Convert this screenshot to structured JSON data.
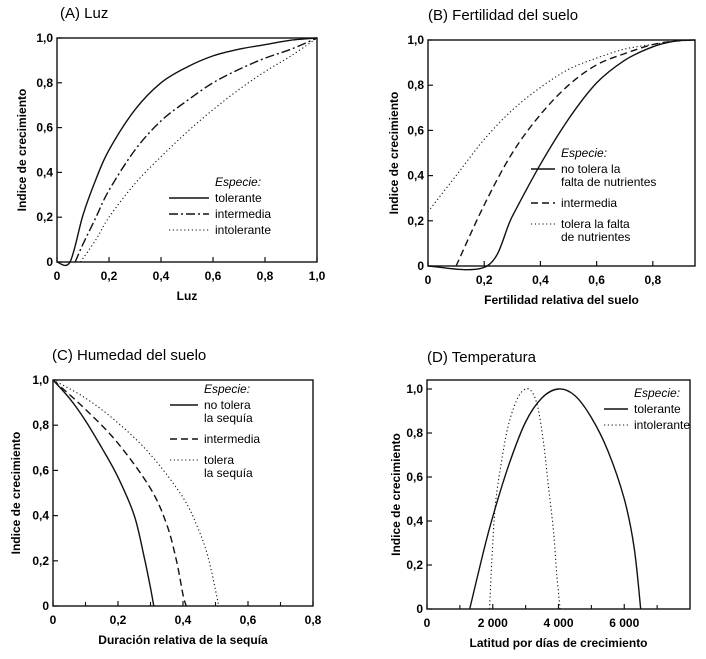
{
  "colors": {
    "ink": "#111111",
    "background": "#ffffff"
  },
  "chart_data": [
    {
      "id": "A",
      "type": "line",
      "panel_letter": "(A)",
      "title": "Luz",
      "xlabel": "Luz",
      "ylabel": "Indice de crecimiento",
      "xlim": [
        0,
        1.0
      ],
      "ylim": [
        0,
        1.0
      ],
      "xticks": [
        0,
        0.2,
        0.4,
        0.6,
        0.8,
        1.0
      ],
      "xtick_labels": [
        "0",
        "0,2",
        "0,4",
        "0,6",
        "0,8",
        "1,0"
      ],
      "yticks": [
        0,
        0.2,
        0.4,
        0.6,
        0.8,
        1.0
      ],
      "ytick_labels": [
        "0",
        "0,2",
        "0,4",
        "0,6",
        "0,8",
        "1,0"
      ],
      "grid": false,
      "legend_position": "bottom-right",
      "legend_title": "Especie:",
      "series": [
        {
          "name": "tolerante",
          "label_lines": [
            "tolerante"
          ],
          "style": "solid",
          "x": [
            0,
            0.05,
            0.1,
            0.15,
            0.2,
            0.3,
            0.4,
            0.5,
            0.6,
            0.7,
            0.8,
            0.9,
            1.0
          ],
          "y": [
            0,
            0,
            0.21,
            0.37,
            0.5,
            0.68,
            0.8,
            0.87,
            0.92,
            0.95,
            0.97,
            0.99,
            1.0
          ]
        },
        {
          "name": "intermedia",
          "label_lines": [
            "intermedia"
          ],
          "style": "dashdot",
          "x": [
            0.07,
            0.1,
            0.15,
            0.2,
            0.3,
            0.4,
            0.5,
            0.6,
            0.7,
            0.8,
            0.9,
            1.0
          ],
          "y": [
            0,
            0.08,
            0.2,
            0.32,
            0.5,
            0.63,
            0.72,
            0.8,
            0.86,
            0.91,
            0.95,
            1.0
          ]
        },
        {
          "name": "intolerante",
          "label_lines": [
            "intolerante"
          ],
          "style": "dotted",
          "x": [
            0.09,
            0.15,
            0.2,
            0.3,
            0.4,
            0.5,
            0.6,
            0.7,
            0.8,
            0.9,
            1.0
          ],
          "y": [
            0,
            0.1,
            0.2,
            0.35,
            0.47,
            0.58,
            0.68,
            0.77,
            0.85,
            0.92,
            1.0
          ]
        }
      ]
    },
    {
      "id": "B",
      "type": "line",
      "panel_letter": "(B)",
      "title": "Fertilidad del suelo",
      "xlabel": "Fertilidad relativa del suelo",
      "ylabel": "Indice de crecimiento",
      "xlim": [
        0,
        0.95
      ],
      "ylim": [
        0,
        1.0
      ],
      "xticks": [
        0,
        0.2,
        0.4,
        0.6,
        0.8
      ],
      "xtick_labels": [
        "0",
        "0,2",
        "0,4",
        "0,6",
        "0,8"
      ],
      "yticks": [
        0,
        0.2,
        0.4,
        0.6,
        0.8,
        1.0
      ],
      "ytick_labels": [
        "0",
        "0,2",
        "0,4",
        "0,6",
        "0,8",
        "1,0"
      ],
      "grid": false,
      "legend_position": "bottom-right",
      "legend_title": "Especie:",
      "series": [
        {
          "name": "no tolera la falta de nutrientes",
          "label_lines": [
            "no tolera la",
            "falta de nutrientes"
          ],
          "style": "solid",
          "x": [
            0,
            0.21,
            0.3,
            0.4,
            0.5,
            0.6,
            0.7,
            0.8,
            0.88,
            0.95
          ],
          "y": [
            0,
            0,
            0.22,
            0.45,
            0.65,
            0.81,
            0.91,
            0.97,
            0.995,
            1.0
          ]
        },
        {
          "name": "intermedia",
          "label_lines": [
            "intermedia"
          ],
          "style": "dashed",
          "x": [
            0.1,
            0.2,
            0.3,
            0.4,
            0.5,
            0.6,
            0.7,
            0.8,
            0.88,
            0.95
          ],
          "y": [
            0,
            0.27,
            0.5,
            0.67,
            0.8,
            0.89,
            0.94,
            0.98,
            0.995,
            1.0
          ]
        },
        {
          "name": "tolera la falta de nutrientes",
          "label_lines": [
            "tolera la falta",
            "de nutrientes"
          ],
          "style": "dotted",
          "x": [
            0,
            0.1,
            0.2,
            0.3,
            0.4,
            0.5,
            0.6,
            0.7,
            0.8,
            0.88,
            0.95
          ],
          "y": [
            0.24,
            0.4,
            0.56,
            0.69,
            0.79,
            0.87,
            0.92,
            0.96,
            0.98,
            0.995,
            1.0
          ]
        }
      ]
    },
    {
      "id": "C",
      "type": "line",
      "panel_letter": "(C)",
      "title": "Humedad del suelo",
      "xlabel": "Duración relativa de la sequía",
      "ylabel": "Indice de crecimiento",
      "xlim": [
        0,
        0.8
      ],
      "ylim": [
        0,
        1.0
      ],
      "xticks": [
        0,
        0.2,
        0.4,
        0.6,
        0.8
      ],
      "xtick_labels": [
        "0",
        "0,2",
        "0,4",
        "0,6",
        "0,8"
      ],
      "minor_xticks": [
        0.1,
        0.3,
        0.5,
        0.7
      ],
      "yticks": [
        0,
        0.2,
        0.4,
        0.6,
        0.8,
        1.0
      ],
      "ytick_labels": [
        "0",
        "0,2",
        "0,4",
        "0,6",
        "0,8",
        "1,0"
      ],
      "grid": false,
      "legend_position": "top-right",
      "legend_title": "Especie:",
      "series": [
        {
          "name": "no tolera la sequía",
          "label_lines": [
            "no tolera",
            "la sequía"
          ],
          "style": "solid",
          "x": [
            0,
            0.05,
            0.1,
            0.15,
            0.2,
            0.25,
            0.28,
            0.3,
            0.31
          ],
          "y": [
            1.0,
            0.92,
            0.82,
            0.7,
            0.57,
            0.4,
            0.22,
            0.08,
            0
          ]
        },
        {
          "name": "intermedia",
          "label_lines": [
            "intermedia"
          ],
          "style": "dashed",
          "x": [
            0,
            0.1,
            0.2,
            0.3,
            0.35,
            0.38,
            0.4,
            0.41
          ],
          "y": [
            1.0,
            0.87,
            0.72,
            0.52,
            0.36,
            0.2,
            0.05,
            0
          ]
        },
        {
          "name": "tolera la sequía",
          "label_lines": [
            "tolera",
            "la sequía"
          ],
          "style": "dotted",
          "x": [
            0,
            0.1,
            0.2,
            0.3,
            0.4,
            0.45,
            0.48,
            0.51
          ],
          "y": [
            1.0,
            0.92,
            0.81,
            0.67,
            0.48,
            0.33,
            0.2,
            0
          ]
        }
      ]
    },
    {
      "id": "D",
      "type": "line",
      "panel_letter": "(D)",
      "title": "Temperatura",
      "xlabel": "Latitud por días de crecimiento",
      "ylabel": "Indice de crecimiento",
      "xlim": [
        0,
        8000
      ],
      "ylim": [
        0,
        1.05
      ],
      "xticks": [
        0,
        2000,
        4000,
        6000
      ],
      "xtick_labels": [
        "0",
        "2 000",
        "4 000",
        "6 000"
      ],
      "minor_xticks": [
        1000,
        3000,
        5000,
        7000
      ],
      "yticks": [
        0,
        0.2,
        0.4,
        0.6,
        0.8,
        1.0
      ],
      "ytick_labels": [
        "0",
        "0,2",
        "0,4",
        "0,6",
        "0,8",
        "1,0"
      ],
      "grid": false,
      "legend_position": "top-right",
      "legend_title": "Especie:",
      "series": [
        {
          "name": "tolerante",
          "label_lines": [
            "tolerante"
          ],
          "style": "solid",
          "x": [
            1300,
            1700,
            2000,
            2500,
            3000,
            3500,
            4000,
            4500,
            5000,
            5500,
            6000,
            6300,
            6500
          ],
          "y": [
            0,
            0.25,
            0.42,
            0.66,
            0.85,
            0.96,
            1.0,
            0.97,
            0.87,
            0.72,
            0.5,
            0.28,
            0
          ]
        },
        {
          "name": "intolerante",
          "label_lines": [
            "intolerante"
          ],
          "style": "dotted",
          "x": [
            1900,
            2000,
            2100,
            2300,
            2500,
            2800,
            3100,
            3350,
            3550,
            3700,
            3850,
            3950,
            4050
          ],
          "y": [
            0,
            0.3,
            0.5,
            0.7,
            0.85,
            0.97,
            1.0,
            0.93,
            0.75,
            0.55,
            0.35,
            0.15,
            0
          ]
        }
      ]
    }
  ]
}
